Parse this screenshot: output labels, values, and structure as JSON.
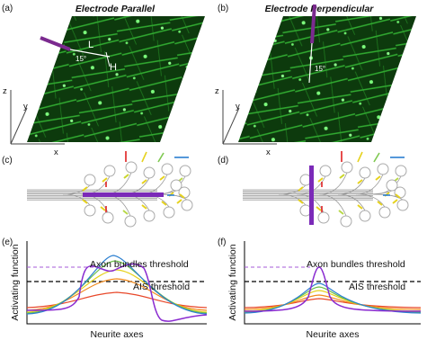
{
  "panels": [
    {
      "label": "(a)",
      "title": "Electrode Parallel",
      "annotations": [
        "L",
        "15°",
        "H"
      ],
      "axes": [
        "z",
        "y",
        "x"
      ]
    },
    {
      "label": "(b)",
      "title": "Electrode Perpendicular",
      "annotations": [
        "15°"
      ],
      "axes": [
        "z",
        "y",
        "x"
      ]
    },
    {
      "label": "(c)"
    },
    {
      "label": "(d)"
    },
    {
      "label": "(e)",
      "ylabel": "Activating function",
      "xlabel": "Neurite axes",
      "thresholds": [
        "Axon bundles threshold",
        "AIS threshold"
      ]
    },
    {
      "label": "(f)",
      "ylabel": "Activating function",
      "xlabel": "Neurite axes",
      "thresholds": [
        "Axon bundles threshold",
        "AIS threshold"
      ]
    }
  ]
}
